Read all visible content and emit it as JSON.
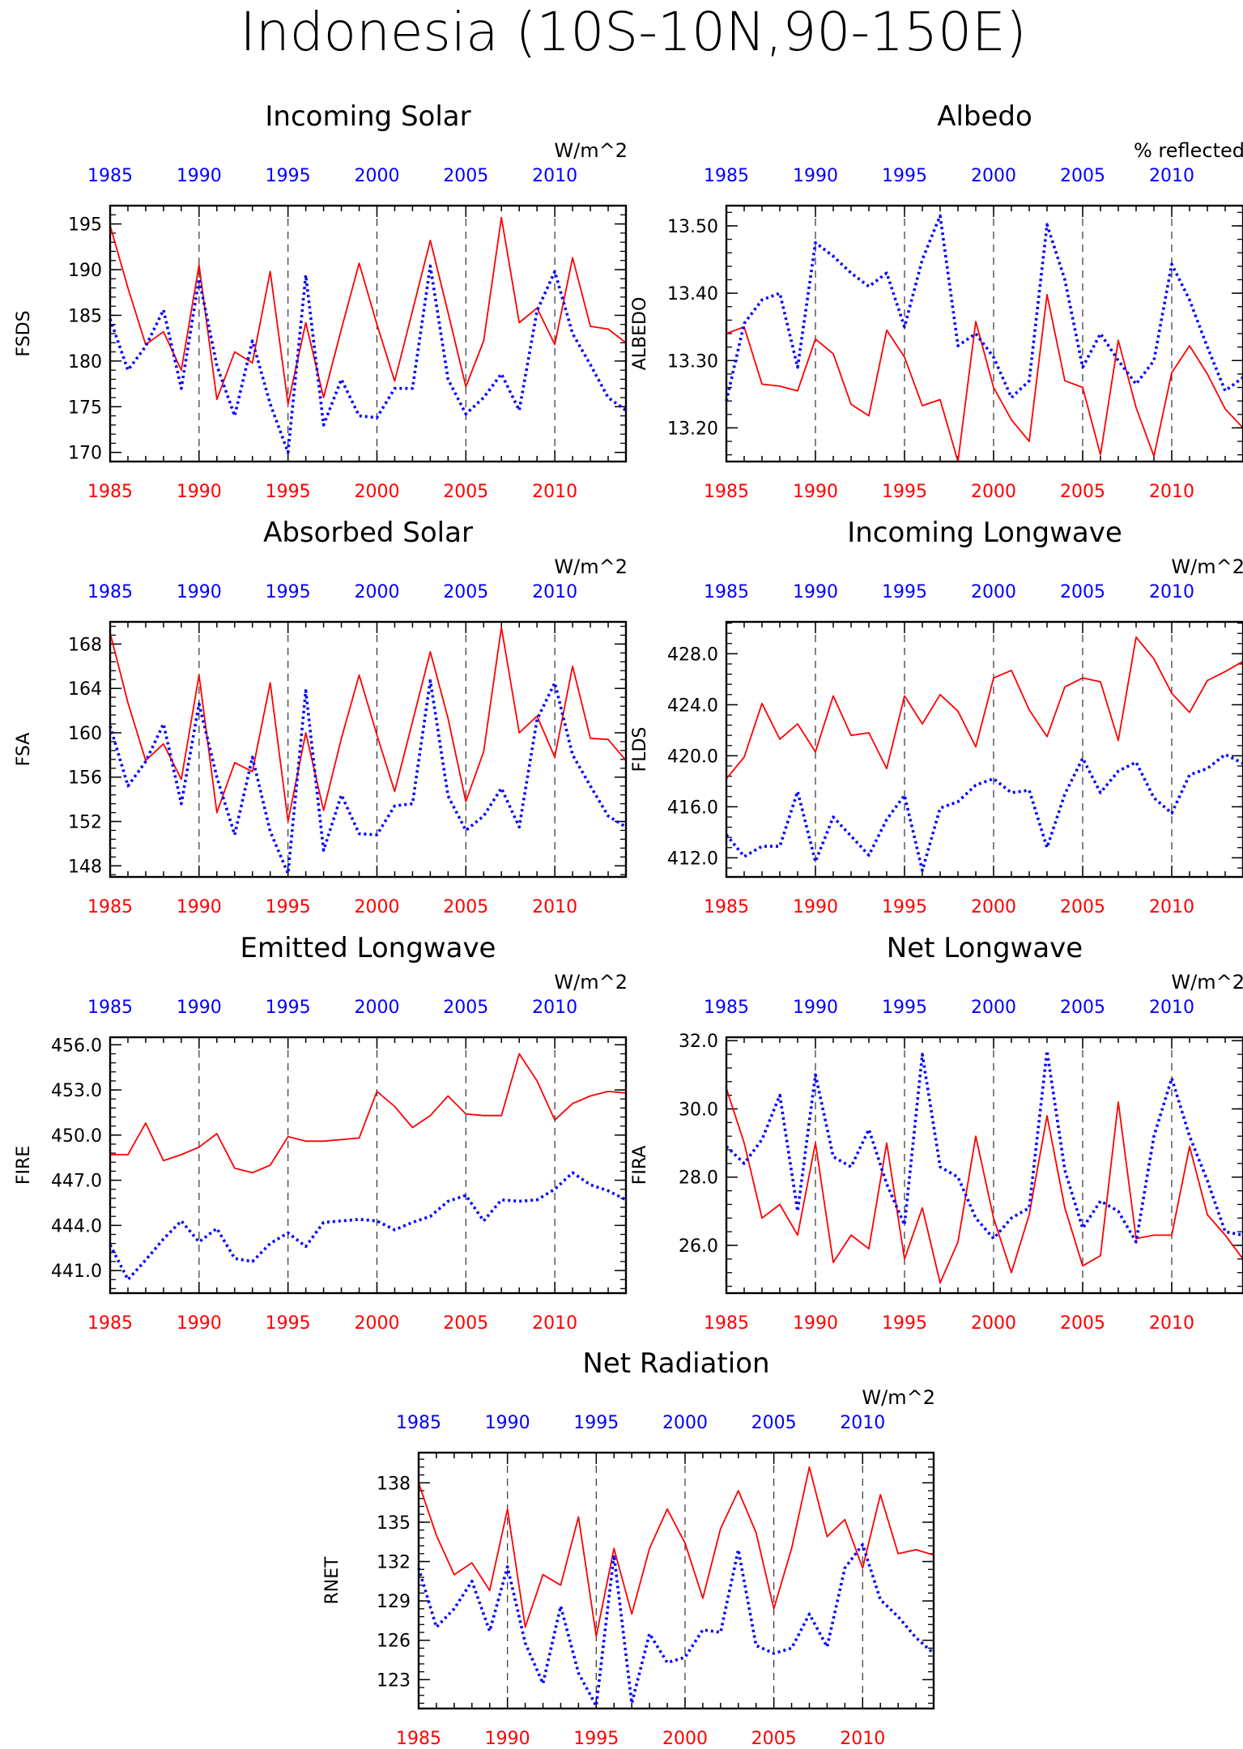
{
  "page_title": "Indonesia (10S-10N,90-150E)",
  "colors": {
    "obs": "#ff0000",
    "model": "#0000ff",
    "axis": "#000000"
  },
  "x_ticks": [
    "1985",
    "1990",
    "1995",
    "2000",
    "2005",
    "2010"
  ],
  "years": [
    1985,
    1986,
    1987,
    1988,
    1989,
    1990,
    1991,
    1992,
    1993,
    1994,
    1995,
    1996,
    1997,
    1998,
    1999,
    2000,
    2001,
    2002,
    2003,
    2004,
    2005,
    2006,
    2007,
    2008,
    2009,
    2010,
    2011,
    2012,
    2013,
    2014
  ],
  "chart_data": [
    {
      "type": "line",
      "title": "Incoming Solar",
      "units": "W/m^2",
      "ylabel": "FSDS",
      "ylim": [
        169,
        197
      ],
      "yticks": [
        170,
        175,
        180,
        185,
        190,
        195
      ],
      "ytick_format": 0,
      "series": [
        {
          "values": [
            194.8,
            188.0,
            181.8,
            183.2,
            179.0,
            190.5,
            175.8,
            181.0,
            179.8,
            189.8,
            175.3,
            184.2,
            176.0,
            183.5,
            190.7,
            184.0,
            177.8,
            185.5,
            193.2,
            185.3,
            177.2,
            182.2,
            195.7,
            184.2,
            185.8,
            181.8,
            191.3,
            183.8,
            183.5,
            182.0
          ]
        },
        {
          "values": [
            184.6,
            179.0,
            181.6,
            185.6,
            177.0,
            189.0,
            179.5,
            174.0,
            182.2,
            175.3,
            170.0,
            189.4,
            173.0,
            178.0,
            174.0,
            173.8,
            177.0,
            177.0,
            190.4,
            178.0,
            174.2,
            176.0,
            178.6,
            174.6,
            185.5,
            189.8,
            183.0,
            179.6,
            176.0,
            174.6
          ]
        }
      ]
    },
    {
      "type": "line",
      "title": "Albedo",
      "units": "% reflected",
      "ylabel": "ALBEDO",
      "ylim": [
        13.15,
        13.53
      ],
      "yticks": [
        13.2,
        13.3,
        13.4,
        13.5
      ],
      "ytick_format": 2,
      "series": [
        {
          "values": [
            13.34,
            13.35,
            13.265,
            13.262,
            13.255,
            13.332,
            13.31,
            13.235,
            13.218,
            13.345,
            13.305,
            13.233,
            13.242,
            13.15,
            13.358,
            13.26,
            13.212,
            13.18,
            13.398,
            13.27,
            13.26,
            13.16,
            13.33,
            13.23,
            13.158,
            13.282,
            13.322,
            13.28,
            13.228,
            13.2
          ]
        },
        {
          "values": [
            13.24,
            13.355,
            13.39,
            13.4,
            13.29,
            13.475,
            13.455,
            13.43,
            13.41,
            13.43,
            13.35,
            13.45,
            13.515,
            13.322,
            13.34,
            13.305,
            13.245,
            13.27,
            13.502,
            13.42,
            13.29,
            13.34,
            13.3,
            13.265,
            13.3,
            13.443,
            13.39,
            13.32,
            13.255,
            13.275
          ]
        }
      ]
    },
    {
      "type": "line",
      "title": "Absorbed Solar",
      "units": "W/m^2",
      "ylabel": "FSA",
      "ylim": [
        147,
        170
      ],
      "yticks": [
        148,
        152,
        156,
        160,
        164,
        168
      ],
      "ytick_format": 0,
      "series": [
        {
          "values": [
            169.0,
            162.7,
            157.5,
            159.0,
            155.8,
            165.2,
            152.8,
            157.3,
            156.5,
            164.5,
            152.0,
            160.0,
            153.0,
            159.5,
            165.2,
            159.8,
            154.7,
            161.0,
            167.3,
            161.3,
            153.8,
            158.3,
            169.5,
            160.0,
            161.5,
            157.8,
            166.0,
            159.5,
            159.4,
            157.5
          ]
        },
        {
          "values": [
            160.6,
            155.2,
            157.4,
            160.8,
            153.6,
            162.6,
            156.0,
            150.8,
            157.8,
            151.1,
            147.3,
            163.8,
            149.4,
            154.4,
            150.9,
            150.8,
            153.4,
            153.6,
            164.7,
            154.3,
            151.2,
            152.5,
            155.0,
            151.5,
            161.2,
            164.5,
            158.0,
            155.2,
            152.5,
            151.5
          ]
        }
      ]
    },
    {
      "type": "line",
      "title": "Incoming Longwave",
      "units": "W/m^2",
      "ylabel": "FLDS",
      "ylim": [
        410.5,
        430.5
      ],
      "yticks": [
        412,
        416,
        420,
        424,
        428
      ],
      "ytick_format": 1,
      "series": [
        {
          "values": [
            418.2,
            419.9,
            424.1,
            421.3,
            422.5,
            420.3,
            424.7,
            421.6,
            421.8,
            419.0,
            424.7,
            422.5,
            424.8,
            423.5,
            420.7,
            426.1,
            426.7,
            423.6,
            421.5,
            425.4,
            426.1,
            425.8,
            421.2,
            429.3,
            427.6,
            424.9,
            423.4,
            425.9,
            426.6,
            427.4
          ]
        },
        {
          "values": [
            413.8,
            412.1,
            412.9,
            412.9,
            417.2,
            411.7,
            415.2,
            413.7,
            412.2,
            415.0,
            416.9,
            411.0,
            415.9,
            416.4,
            417.7,
            418.2,
            417.1,
            417.3,
            412.8,
            417.0,
            419.8,
            417.1,
            418.8,
            419.5,
            416.7,
            415.5,
            418.5,
            419.0,
            420.1,
            419.4
          ]
        }
      ]
    },
    {
      "type": "line",
      "title": "Emitted Longwave",
      "units": "W/m^2",
      "ylabel": "FIRE",
      "ylim": [
        439.5,
        456.5
      ],
      "yticks": [
        441,
        444,
        447,
        450,
        453,
        456
      ],
      "ytick_format": 1,
      "series": [
        {
          "values": [
            448.7,
            448.7,
            450.8,
            448.3,
            448.7,
            449.2,
            450.1,
            447.8,
            447.5,
            448.0,
            449.9,
            449.6,
            449.6,
            449.7,
            449.8,
            452.9,
            451.9,
            450.5,
            451.3,
            452.6,
            451.4,
            451.3,
            451.3,
            455.4,
            453.6,
            451.0,
            452.1,
            452.6,
            452.9,
            452.8
          ]
        },
        {
          "values": [
            442.7,
            440.4,
            441.7,
            443.1,
            444.3,
            442.9,
            443.8,
            441.8,
            441.6,
            442.8,
            443.5,
            442.6,
            444.2,
            444.3,
            444.4,
            444.3,
            443.7,
            444.2,
            444.6,
            445.6,
            446.0,
            444.3,
            445.7,
            445.6,
            445.7,
            446.4,
            447.5,
            446.7,
            446.3,
            445.7
          ]
        }
      ]
    },
    {
      "type": "line",
      "title": "Net Longwave",
      "units": "W/m^2",
      "ylabel": "FIRA",
      "ylim": [
        24.6,
        32.1
      ],
      "yticks": [
        26,
        28,
        30,
        32
      ],
      "ytick_format": 1,
      "series": [
        {
          "values": [
            30.6,
            29.0,
            26.8,
            27.2,
            26.3,
            29.0,
            25.5,
            26.3,
            25.9,
            29.0,
            25.6,
            27.1,
            24.9,
            26.1,
            29.2,
            26.8,
            25.2,
            26.9,
            29.8,
            27.1,
            25.4,
            25.7,
            30.2,
            26.2,
            26.3,
            26.3,
            28.9,
            26.9,
            26.3,
            25.6
          ]
        },
        {
          "values": [
            28.9,
            28.4,
            29.1,
            30.4,
            27.0,
            31.0,
            28.6,
            28.3,
            29.4,
            27.8,
            26.6,
            31.6,
            28.3,
            28.0,
            26.8,
            26.2,
            26.8,
            27.1,
            31.7,
            28.2,
            26.5,
            27.3,
            27.0,
            26.1,
            29.2,
            30.9,
            29.2,
            27.9,
            26.4,
            26.3
          ]
        }
      ]
    },
    {
      "type": "line",
      "title": "Net Radiation",
      "units": "W/m^2",
      "ylabel": "RNET",
      "ylim": [
        120.8,
        140.3
      ],
      "yticks": [
        123,
        126,
        129,
        132,
        135,
        138
      ],
      "ytick_format": 0,
      "series": [
        {
          "values": [
            138.0,
            134.0,
            131.0,
            131.9,
            129.8,
            136.0,
            127.0,
            131.0,
            130.2,
            135.4,
            126.3,
            133.0,
            128.0,
            133.0,
            136.0,
            133.4,
            129.2,
            134.5,
            137.4,
            134.2,
            128.4,
            133.0,
            139.2,
            133.9,
            135.2,
            131.5,
            137.1,
            132.6,
            132.9,
            132.5
          ]
        },
        {
          "values": [
            131.5,
            127.0,
            128.4,
            130.5,
            126.7,
            131.6,
            125.8,
            122.7,
            128.6,
            123.5,
            121.0,
            132.5,
            121.2,
            126.5,
            124.3,
            124.7,
            126.8,
            126.6,
            132.9,
            125.6,
            125.0,
            125.4,
            128.0,
            125.5,
            131.5,
            133.3,
            129.1,
            127.8,
            126.2,
            125.0
          ]
        }
      ]
    }
  ]
}
